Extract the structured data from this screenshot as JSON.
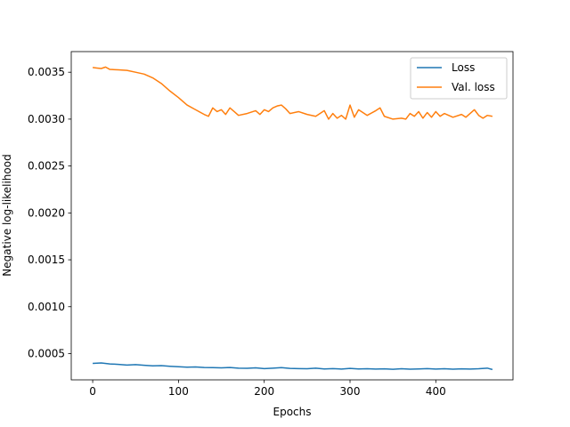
{
  "chart_data": {
    "type": "line",
    "title": "",
    "xlabel": "Epochs",
    "ylabel": "Negative log-likelihood",
    "xlim": [
      -25,
      490
    ],
    "ylim": [
      0.00022,
      0.00372
    ],
    "xticks": [
      0,
      100,
      200,
      300,
      400
    ],
    "xtick_labels": [
      "0",
      "100",
      "200",
      "300",
      "400"
    ],
    "yticks": [
      0.0005,
      0.001,
      0.0015,
      0.002,
      0.0025,
      0.003,
      0.0035
    ],
    "ytick_labels": [
      "0.0005",
      "0.0010",
      "0.0015",
      "0.0020",
      "0.0025",
      "0.0030",
      "0.0035"
    ],
    "grid": false,
    "legend_position": "top-right",
    "series": [
      {
        "name": "Loss",
        "color": "#1f77b4",
        "x": [
          0,
          10,
          20,
          30,
          40,
          50,
          60,
          70,
          80,
          90,
          100,
          110,
          120,
          130,
          140,
          150,
          160,
          170,
          180,
          190,
          200,
          210,
          220,
          230,
          240,
          250,
          260,
          270,
          280,
          290,
          300,
          310,
          320,
          330,
          340,
          350,
          360,
          370,
          380,
          390,
          400,
          410,
          420,
          430,
          440,
          450,
          460,
          466
        ],
        "y": [
          0.000395,
          0.0004,
          0.00039,
          0.000385,
          0.000378,
          0.000382,
          0.000375,
          0.00037,
          0.000372,
          0.000365,
          0.00036,
          0.000355,
          0.000358,
          0.000352,
          0.00035,
          0.000348,
          0.000352,
          0.000345,
          0.000343,
          0.000348,
          0.00034,
          0.000345,
          0.00035,
          0.000342,
          0.00034,
          0.000338,
          0.000344,
          0.000336,
          0.00034,
          0.000335,
          0.000342,
          0.000336,
          0.000338,
          0.000335,
          0.000337,
          0.000333,
          0.000338,
          0.000334,
          0.000336,
          0.00034,
          0.000335,
          0.000338,
          0.000334,
          0.000337,
          0.000335,
          0.000338,
          0.000345,
          0.00033
        ]
      },
      {
        "name": "Val. loss",
        "color": "#ff7f0e",
        "x": [
          0,
          5,
          10,
          15,
          20,
          30,
          40,
          50,
          60,
          70,
          80,
          90,
          100,
          110,
          120,
          130,
          135,
          140,
          145,
          150,
          155,
          160,
          165,
          170,
          180,
          190,
          195,
          200,
          205,
          210,
          215,
          220,
          225,
          230,
          240,
          250,
          260,
          270,
          275,
          280,
          285,
          290,
          295,
          300,
          305,
          310,
          320,
          330,
          335,
          340,
          350,
          360,
          365,
          370,
          375,
          380,
          385,
          390,
          395,
          400,
          405,
          410,
          420,
          430,
          435,
          440,
          445,
          450,
          455,
          460,
          466
        ],
        "y": [
          0.00355,
          0.003545,
          0.00354,
          0.003555,
          0.00353,
          0.003525,
          0.00352,
          0.0035,
          0.00348,
          0.00344,
          0.00338,
          0.0033,
          0.00323,
          0.00315,
          0.0031,
          0.00305,
          0.00303,
          0.00312,
          0.00308,
          0.0031,
          0.00305,
          0.00312,
          0.00308,
          0.00304,
          0.00306,
          0.00309,
          0.00305,
          0.0031,
          0.00308,
          0.00312,
          0.00314,
          0.00315,
          0.00311,
          0.00306,
          0.00308,
          0.00305,
          0.00303,
          0.00309,
          0.003,
          0.00306,
          0.00301,
          0.00304,
          0.003,
          0.00315,
          0.00302,
          0.0031,
          0.00304,
          0.00309,
          0.00312,
          0.00303,
          0.003,
          0.00301,
          0.003,
          0.00306,
          0.00303,
          0.00308,
          0.00301,
          0.00307,
          0.00302,
          0.00308,
          0.00303,
          0.00306,
          0.00302,
          0.00305,
          0.00302,
          0.00306,
          0.0031,
          0.00304,
          0.00301,
          0.00304,
          0.00303
        ]
      }
    ]
  }
}
